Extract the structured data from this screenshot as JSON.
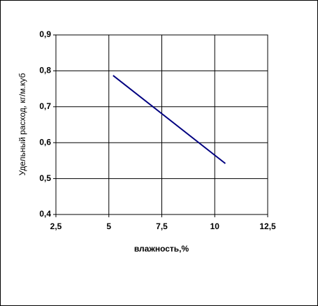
{
  "chart_data": {
    "type": "line",
    "x_label": "влажность,%",
    "y_label": "Удельный расход, кг/м.куб",
    "series": [
      {
        "color": "#000080",
        "x": [
          5.2,
          10.5
        ],
        "values": [
          0.787,
          0.542
        ]
      }
    ],
    "xlim": [
      2.5,
      12.5
    ],
    "xticks": [
      {
        "value": 2.5,
        "label": "2,5"
      },
      5,
      {
        "value": 7.5,
        "label": "7,5"
      },
      10,
      {
        "value": 12.5,
        "label": "12,5"
      }
    ],
    "ylim": [
      0.4,
      0.9
    ],
    "yticks": [
      {
        "value": 0.4,
        "label": "0,4"
      },
      {
        "value": 0.5,
        "label": "0,5"
      },
      {
        "value": 0.6,
        "label": "0,6"
      },
      {
        "value": 0.7,
        "label": "0,7"
      },
      {
        "value": 0.8,
        "label": "0,8"
      },
      {
        "value": 0.9,
        "label": "0,9"
      }
    ],
    "grid": true
  }
}
